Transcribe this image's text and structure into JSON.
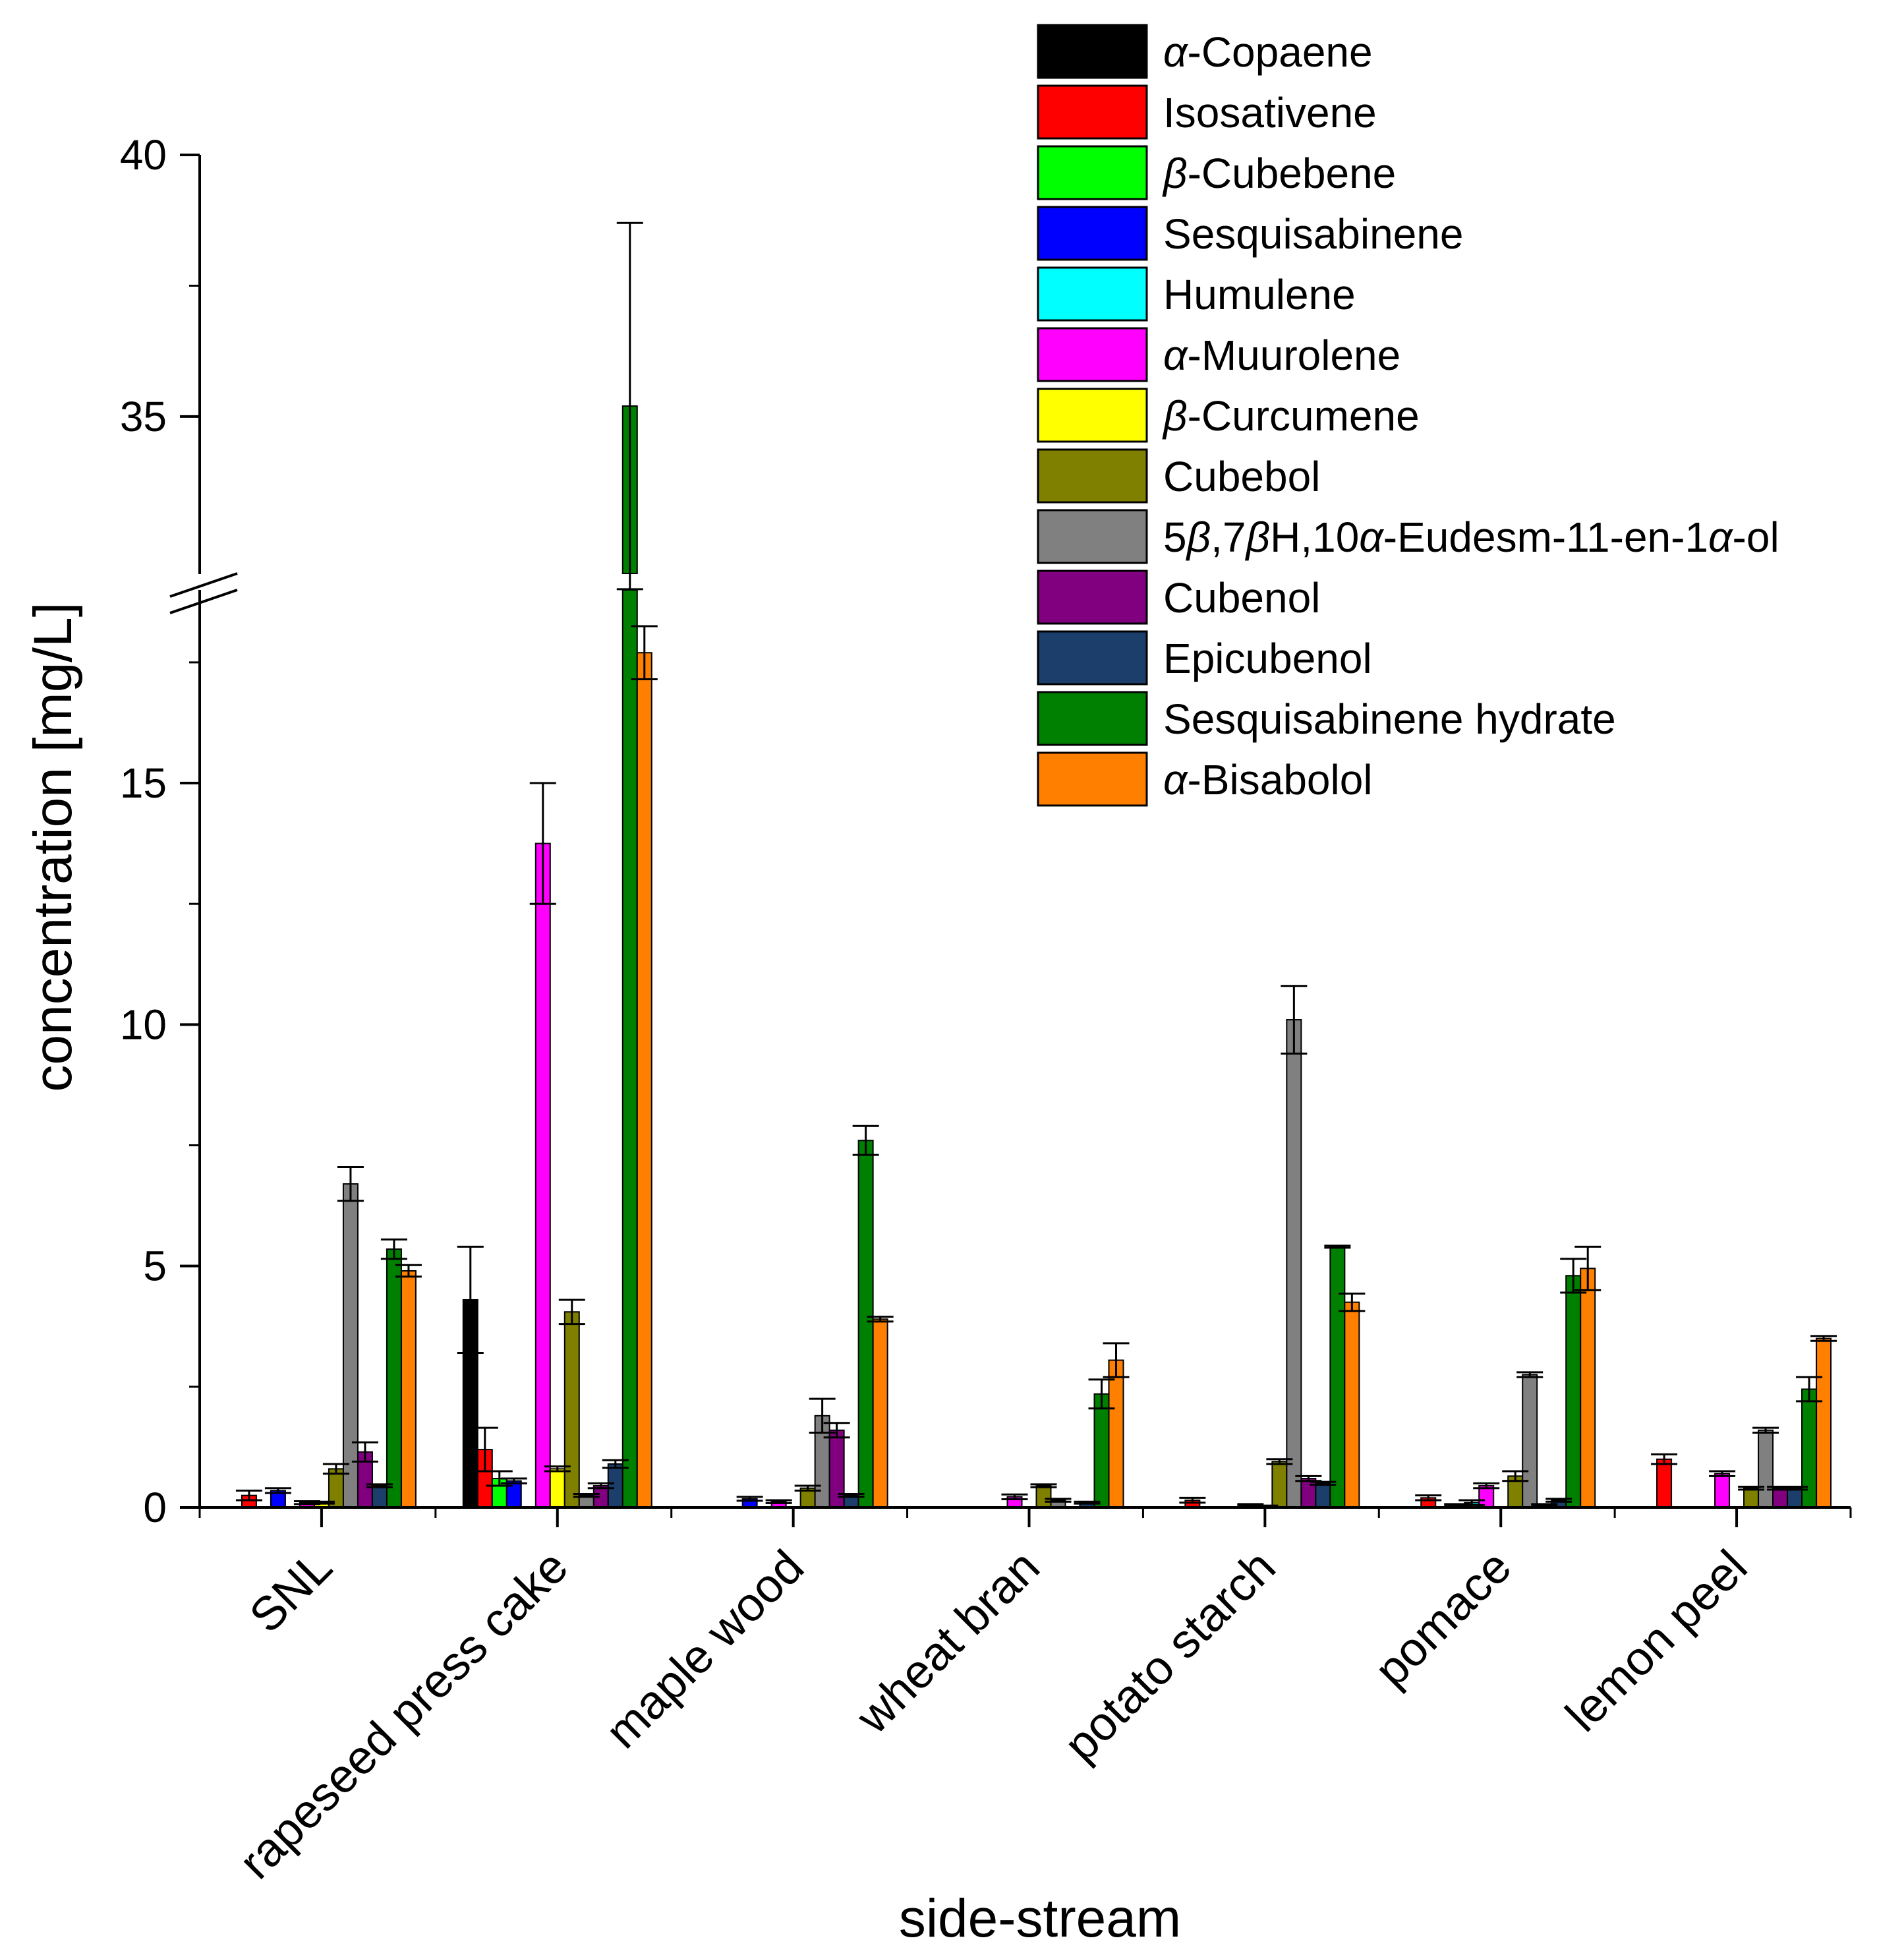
{
  "chart_data": {
    "type": "bar",
    "title": "",
    "xlabel": "side-stream",
    "ylabel": "concentration [mg/L]",
    "axis_break": {
      "from": 19,
      "to": 32
    },
    "ylim": [
      0,
      40
    ],
    "y_ticks": [
      "0",
      "5",
      "10",
      "15",
      "35",
      "40"
    ],
    "legend_position": "top-right",
    "categories": [
      "SNL",
      "rapeseed press cake",
      "maple wood",
      "wheat bran",
      "potato starch",
      "pomace",
      "lemon peel"
    ],
    "series": [
      {
        "name": "α-Copaene",
        "name_parts": [
          [
            "α",
            true
          ],
          [
            "-Copaene",
            false
          ]
        ],
        "color": "#000000",
        "values": [
          null,
          4.3,
          null,
          null,
          null,
          null,
          null
        ],
        "errors": [
          null,
          1.1,
          null,
          null,
          null,
          null,
          null
        ]
      },
      {
        "name": "Isosativene",
        "name_parts": [
          [
            "Isosativene",
            false
          ]
        ],
        "color": "#ff0000",
        "values": [
          0.25,
          1.2,
          null,
          null,
          0.15,
          0.2,
          1.0
        ],
        "errors": [
          0.1,
          0.45,
          null,
          null,
          0.05,
          0.05,
          0.1
        ]
      },
      {
        "name": "β-Cubebene",
        "name_parts": [
          [
            "β",
            true
          ],
          [
            "-Cubebene",
            false
          ]
        ],
        "color": "#00ff00",
        "values": [
          null,
          0.6,
          null,
          null,
          null,
          null,
          null
        ],
        "errors": [
          null,
          0.15,
          null,
          null,
          null,
          null,
          null
        ]
      },
      {
        "name": "Sesquisabinene",
        "name_parts": [
          [
            "Sesquisabinene",
            false
          ]
        ],
        "color": "#0000ff",
        "values": [
          0.35,
          0.55,
          0.18,
          null,
          null,
          0.05,
          null
        ],
        "errors": [
          0.05,
          0.05,
          0.04,
          null,
          null,
          0.02,
          null
        ]
      },
      {
        "name": "Humulene",
        "name_parts": [
          [
            "Humulene",
            false
          ]
        ],
        "color": "#00ffff",
        "values": [
          null,
          null,
          null,
          null,
          null,
          0.1,
          null
        ],
        "errors": [
          null,
          null,
          null,
          null,
          null,
          0.05,
          null
        ]
      },
      {
        "name": "α-Muurolene",
        "name_parts": [
          [
            "α",
            true
          ],
          [
            "-Muurolene",
            false
          ]
        ],
        "color": "#ff00ff",
        "values": [
          0.1,
          13.75,
          0.12,
          0.22,
          0.05,
          0.45,
          0.7
        ],
        "errors": [
          0.03,
          1.25,
          0.03,
          0.05,
          0.02,
          0.05,
          0.05
        ]
      },
      {
        "name": "β-Curcumene",
        "name_parts": [
          [
            "β",
            true
          ],
          [
            "-Curcumene",
            false
          ]
        ],
        "color": "#ffff00",
        "values": [
          0.1,
          0.8,
          null,
          null,
          0.03,
          null,
          null
        ],
        "errors": [
          0.02,
          0.05,
          null,
          null,
          0.01,
          null,
          null
        ]
      },
      {
        "name": "Cubebol",
        "name_parts": [
          [
            "Cubebol",
            false
          ]
        ],
        "color": "#808000",
        "values": [
          0.8,
          4.05,
          0.4,
          0.45,
          0.95,
          0.65,
          0.4
        ],
        "errors": [
          0.1,
          0.25,
          0.05,
          0.03,
          0.05,
          0.1,
          0.03
        ]
      },
      {
        "name": "5β,7βH,10α-Eudesm-11-en-1α-ol",
        "name_parts": [
          [
            "5",
            false
          ],
          [
            "β",
            true
          ],
          [
            ",7",
            false
          ],
          [
            "β",
            true
          ],
          [
            "H,10",
            false
          ],
          [
            "α",
            true
          ],
          [
            "-Eudesm-11-en-1",
            false
          ],
          [
            "α",
            true
          ],
          [
            "-ol",
            false
          ]
        ],
        "color": "#808080",
        "values": [
          6.7,
          0.25,
          1.9,
          0.15,
          10.1,
          2.75,
          1.6
        ],
        "errors": [
          0.35,
          0.03,
          0.35,
          0.03,
          0.7,
          0.05,
          0.05
        ]
      },
      {
        "name": "Cubenol",
        "name_parts": [
          [
            "Cubenol",
            false
          ]
        ],
        "color": "#800080",
        "values": [
          1.15,
          0.45,
          1.6,
          null,
          0.6,
          0.05,
          0.4
        ],
        "errors": [
          0.2,
          0.05,
          0.15,
          null,
          0.05,
          0.02,
          0.03
        ]
      },
      {
        "name": "Epicubenol",
        "name_parts": [
          [
            "Epicubenol",
            false
          ]
        ],
        "color": "#1b3e6b",
        "values": [
          0.45,
          0.9,
          0.25,
          0.1,
          0.5,
          0.15,
          0.4
        ],
        "errors": [
          0.03,
          0.08,
          0.03,
          0.02,
          0.03,
          0.03,
          0.03
        ]
      },
      {
        "name": "Sesquisabinene hydrate",
        "name_parts": [
          [
            "Sesquisabinene hydrate",
            false
          ]
        ],
        "color": "#008000",
        "values": [
          5.35,
          35.2,
          7.6,
          2.35,
          5.4,
          4.8,
          2.45
        ],
        "errors": [
          0.2,
          3.5,
          0.3,
          0.3,
          0.02,
          0.35,
          0.25
        ]
      },
      {
        "name": "α-Bisabolol",
        "name_parts": [
          [
            "α",
            true
          ],
          [
            "-Bisabolol",
            false
          ]
        ],
        "color": "#ff8000",
        "values": [
          4.9,
          17.7,
          3.9,
          3.05,
          4.25,
          4.95,
          3.5
        ],
        "errors": [
          0.12,
          0.55,
          0.05,
          0.35,
          0.18,
          0.45,
          0.05
        ]
      }
    ]
  }
}
